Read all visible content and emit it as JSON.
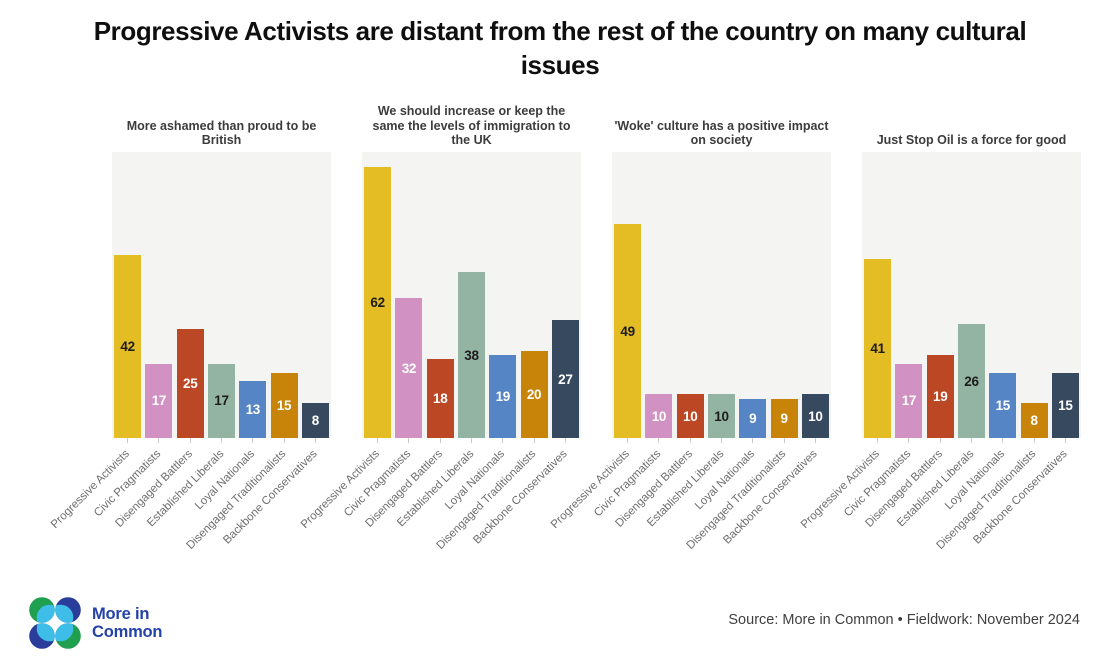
{
  "page_title": "Progressive Activists are distant from the rest of the country on many cultural issues",
  "footer": {
    "logo_line1": "More in",
    "logo_line2": "Common",
    "source_text": "Source: More in Common • Fieldwork: November 2024",
    "logo_colors": {
      "green": "#1FA04F",
      "dark_blue": "#2A3D9B",
      "light_blue": "#3FBDE9"
    }
  },
  "chart_data": {
    "type": "bar",
    "grid": false,
    "legend": "none",
    "plot_background": "#f4f4f3",
    "ylim": [
      0,
      65.5
    ],
    "categories": [
      "Progressive Activists",
      "Civic Pragmatists",
      "Disengaged Battlers",
      "Established Liberals",
      "Loyal Nationals",
      "Disengaged Traditionalists",
      "Backbone Conservatives"
    ],
    "bar_colors": [
      "#E4BC24",
      "#D192C3",
      "#BC4725",
      "#93B3A3",
      "#5585C4",
      "#C78409",
      "#37495F"
    ],
    "value_label_colors": [
      "#1d1d1d",
      "#ffffff",
      "#ffffff",
      "#1d1d1d",
      "#ffffff",
      "#ffffff",
      "#ffffff"
    ],
    "value_label_position": "centered inside bars",
    "x_tick_label_rotation": -45,
    "panels": [
      {
        "title": "More ashamed than proud to be British",
        "values": [
          42,
          17,
          25,
          17,
          13,
          15,
          8
        ]
      },
      {
        "title": "We should increase or keep the same the levels of immigration to the UK",
        "values": [
          62,
          32,
          18,
          38,
          19,
          20,
          27
        ]
      },
      {
        "title": "'Woke' culture has a positive impact on society",
        "values": [
          49,
          10,
          10,
          10,
          9,
          9,
          10
        ]
      },
      {
        "title": "Just Stop Oil is a force for good",
        "values": [
          41,
          17,
          19,
          26,
          15,
          8,
          15
        ]
      }
    ]
  }
}
